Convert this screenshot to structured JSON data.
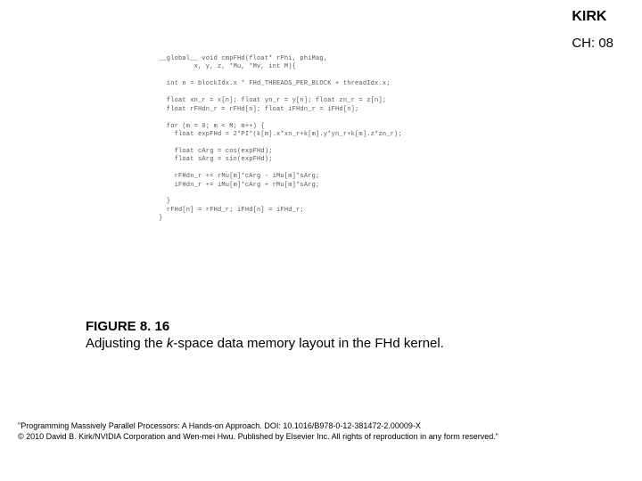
{
  "header": {
    "kirk": "KIRK",
    "chapter": "CH: 08"
  },
  "code": {
    "text": "__global__ void cmpFHd(float* rPhi, phiMag,\n         x, y, z, *Mu, *Mv, int M){\n\n  int n = blockIdx.x * FHd_THREADS_PER_BLOCK + threadIdx.x;\n\n  float xn_r = x[n]; float yn_r = y[n]; float zn_r = z[n];\n  float rFHdn_r = rFHd[n]; float iFHdn_r = iFHd[n];\n\n  for (m = 0; m < M; m++) {\n    float expFHd = 2*PI*(k[m].x*xn_r+k[m].y*yn_r+k[m].z*zn_r);\n\n    float cArg = cos(expFHd);\n    float sArg = sin(expFHd);\n\n    rFHdn_r += rMu[m]*cArg - iMu[m]*sArg;\n    iFHdn_r += iMu[m]*cArg + rMu[m]*sArg;\n\n  }\n  rFHd[n] = rFHd_r; iFHd[n] = iFHd_r;\n}"
  },
  "figure": {
    "number": "FIGURE 8. 16",
    "caption_prefix": "Adjusting the ",
    "caption_italic": "k",
    "caption_suffix": "-space data memory layout in the FHd kernel."
  },
  "footer": {
    "line1": "\"Programming Massively Parallel Processors: A Hands-on Approach. DOI: 10.1016/B978-0-12-381472-2.00009-X",
    "line2": "© 2010 David B. Kirk/NVIDIA Corporation and Wen-mei Hwu. Published by Elsevier Inc. All rights of reproduction in any form reserved.\""
  },
  "colors": {
    "background": "#ffffff",
    "text_primary": "#000000",
    "code_text": "#555555"
  }
}
